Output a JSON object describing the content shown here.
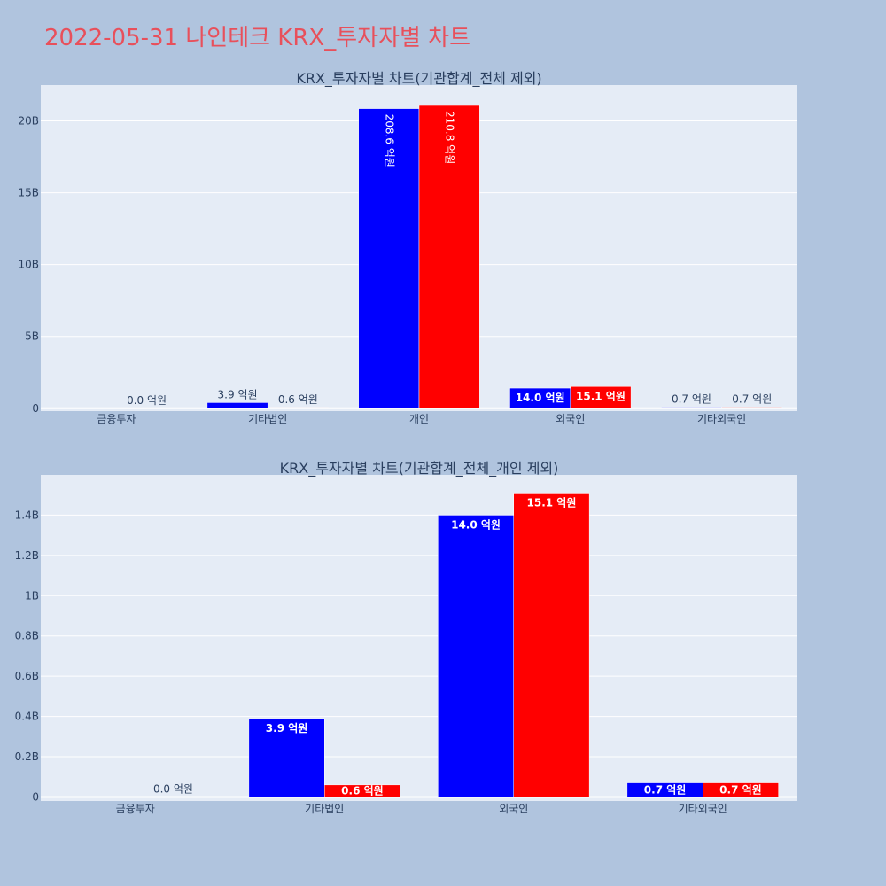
{
  "title": "2022-05-31 나인테크 KRX_투자자별 차트",
  "colors": {
    "buy": "#0000ff",
    "sell": "#ff0000",
    "plot_bg": "#e5ecf6",
    "page_bg": "#b0c4de",
    "title": "#e8505b",
    "text": "#2a3f5f"
  },
  "chart_data": [
    {
      "type": "bar",
      "title": "KRX_투자자별 차트(기관합계_전체 제외)",
      "categories": [
        "금융투자",
        "기타법인",
        "개인",
        "외국인",
        "기타외국인"
      ],
      "ylim": [
        -0.2,
        22.5
      ],
      "y_unit_divisor": 1,
      "yticks": [
        0,
        5,
        10,
        15,
        20
      ],
      "ytick_labels": [
        "0",
        "5B",
        "10B",
        "15B",
        "20B"
      ],
      "grid": true,
      "series": [
        {
          "color": "#0000ff",
          "values": [
            0.0,
            0.39,
            20.86,
            1.4,
            0.07
          ],
          "labels": [
            "",
            "3.9 억원",
            "208.6 억원",
            "14.0 억원",
            "0.7 억원"
          ]
        },
        {
          "color": "#ff0000",
          "values": [
            0.0,
            0.06,
            21.08,
            1.51,
            0.07
          ],
          "labels": [
            "0.0 억원",
            "0.6 억원",
            "210.8 억원",
            "15.1 억원",
            "0.7 억원"
          ]
        }
      ]
    },
    {
      "type": "bar",
      "title": "KRX_투자자별 차트(기관합계_전체_개인 제외)",
      "categories": [
        "금융투자",
        "기타법인",
        "외국인",
        "기타외국인"
      ],
      "ylim": [
        -0.02,
        1.6
      ],
      "y_unit_divisor": 1,
      "yticks": [
        0,
        0.2,
        0.4,
        0.6,
        0.8,
        1.0,
        1.2,
        1.4
      ],
      "ytick_labels": [
        "0",
        "0.2B",
        "0.4B",
        "0.6B",
        "0.8B",
        "1B",
        "1.2B",
        "1.4B"
      ],
      "grid": true,
      "series": [
        {
          "color": "#0000ff",
          "values": [
            0.0,
            0.39,
            1.4,
            0.07
          ],
          "labels": [
            "",
            "3.9 억원",
            "14.0 억원",
            "0.7 억원"
          ]
        },
        {
          "color": "#ff0000",
          "values": [
            0.0,
            0.06,
            1.51,
            0.07
          ],
          "labels": [
            "0.0 억원",
            "0.6 억원",
            "15.1 억원",
            "0.7 억원"
          ]
        }
      ]
    }
  ]
}
